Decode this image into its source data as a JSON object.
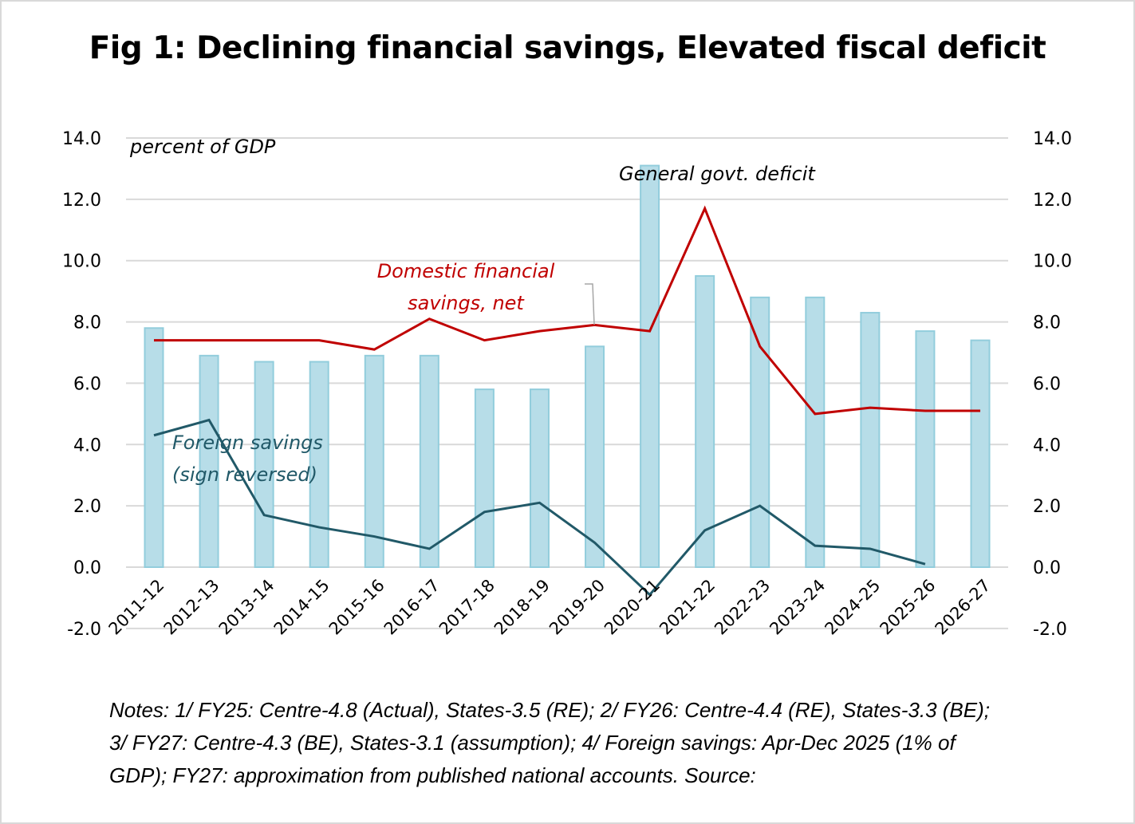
{
  "chart_data": {
    "type": "bar+line",
    "title": "Fig 1: Declining financial savings, Elevated fiscal deficit",
    "ylabel": "percent of GDP",
    "xlabel": "",
    "ylim": [
      -2,
      14
    ],
    "y_ticks": [
      "14.0",
      "12.0",
      "10.0",
      "8.0",
      "6.0",
      "4.0",
      "2.0",
      "0.0",
      "-2.0"
    ],
    "y_tick_values": [
      14,
      12,
      10,
      8,
      6,
      4,
      2,
      0,
      -2
    ],
    "y2_ticks": [
      "14.0",
      "12.0",
      "10.0",
      "8.0",
      "6.0",
      "4.0",
      "2.0",
      "0.0",
      "-2.0"
    ],
    "grid": true,
    "legend": "none (inline annotations)",
    "categories": [
      "2011-12",
      "2012-13",
      "2013-14",
      "2014-15",
      "2015-16",
      "2016-17",
      "2017-18",
      "2018-19",
      "2019-20",
      "2020-21",
      "2021-22",
      "2022-23",
      "2023-24",
      "2024-25",
      "2025-26",
      "2026-27"
    ],
    "series": [
      {
        "name": "General govt. deficit",
        "type": "bar",
        "color": "#b7dde8",
        "border": "#92cddc",
        "values": [
          7.8,
          6.9,
          6.7,
          6.7,
          6.9,
          6.9,
          5.8,
          5.8,
          7.2,
          13.1,
          9.5,
          8.8,
          8.8,
          8.3,
          7.7,
          7.4
        ]
      },
      {
        "name": "Domestic financial savings, net",
        "type": "line",
        "color": "#c00000",
        "values": [
          7.4,
          7.4,
          7.4,
          7.4,
          7.1,
          8.1,
          7.4,
          7.7,
          7.9,
          7.7,
          11.7,
          7.2,
          5.0,
          5.2,
          5.1,
          5.1
        ]
      },
      {
        "name": "Foreign savings (sign reversed)",
        "type": "line",
        "color": "#215968",
        "values": [
          4.3,
          4.8,
          1.7,
          1.3,
          1.0,
          0.6,
          1.8,
          2.1,
          0.8,
          -0.9,
          1.2,
          2.0,
          0.7,
          0.6,
          0.1,
          null
        ]
      }
    ],
    "annotations": [
      {
        "text": "percent of GDP",
        "color": "#000000"
      },
      {
        "text": "General govt. deficit",
        "color": "#000000"
      },
      {
        "line1": "Domestic financial",
        "line2": "savings, net",
        "color": "#c00000"
      },
      {
        "line1": "Foreign savings",
        "line2": "(sign reversed)",
        "color": "#215968"
      }
    ]
  },
  "notes": "Notes: 1/ FY25: Centre-4.8 (Actual), States-3.5 (RE); 2/ FY26: Centre-4.4 (RE), States-3.3 (BE); 3/ FY27: Centre-4.3 (BE), States-3.1 (assumption); 4/ Foreign savings: Apr-Dec 2025 (1% of GDP); FY27: approximation from published national accounts. Source:"
}
